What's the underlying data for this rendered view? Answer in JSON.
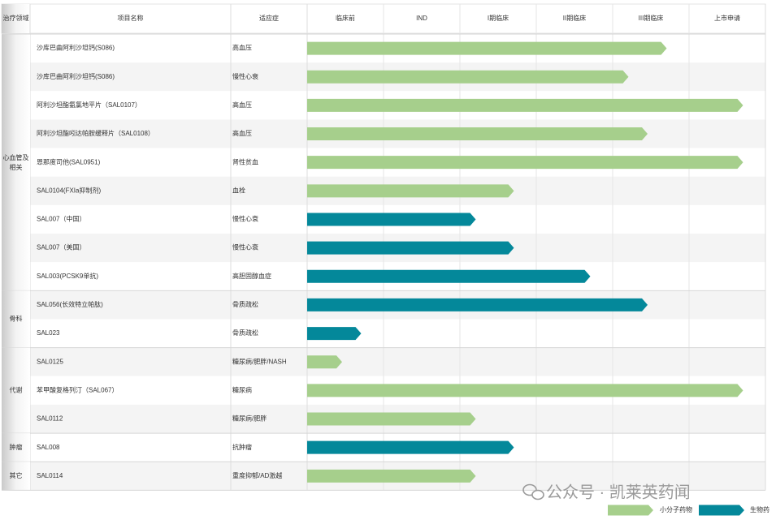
{
  "chart_data": {
    "type": "bar",
    "columns": {
      "area": "治疗领域",
      "name": "项目名称",
      "indication": "适应症"
    },
    "stages": [
      "临床前",
      "IND",
      "I期临床",
      "II期临床",
      "III期临床",
      "上市申请"
    ],
    "groups": [
      {
        "label": "心血管及相关",
        "rows": 9
      },
      {
        "label": "骨科",
        "rows": 2
      },
      {
        "label": "代谢",
        "rows": 3
      },
      {
        "label": "肿瘤",
        "rows": 1
      },
      {
        "label": "其它",
        "rows": 1
      }
    ],
    "rows": [
      {
        "name": "沙库巴曲阿利沙坦钙(S086)",
        "indication": "高血压",
        "type": "small",
        "progress": 4.75
      },
      {
        "name": "沙库巴曲阿利沙坦钙(S086)",
        "indication": "慢性心衰",
        "type": "small",
        "progress": 4.25
      },
      {
        "name": "阿利沙坦酯氨氯地平片（SAL0107）",
        "indication": "高血压",
        "type": "small",
        "progress": 5.75
      },
      {
        "name": "阿利沙坦酯吲达帕胺缓释片（SAL0108）",
        "indication": "高血压",
        "type": "small",
        "progress": 4.5
      },
      {
        "name": "恩那度司他(SAL0951)",
        "indication": "肾性贫血",
        "type": "small",
        "progress": 5.75
      },
      {
        "name": "SAL0104(FXIa抑制剂)",
        "indication": "血栓",
        "type": "small",
        "progress": 2.75
      },
      {
        "name": "SAL007（中国）",
        "indication": "慢性心衰",
        "type": "bio",
        "progress": 2.25
      },
      {
        "name": "SAL007（美国）",
        "indication": "慢性心衰",
        "type": "bio",
        "progress": 2.75
      },
      {
        "name": "SAL003(PCSK9单抗)",
        "indication": "高胆固醇血症",
        "type": "bio",
        "progress": 3.75
      },
      {
        "name": "SAL056(长效特立帕肽)",
        "indication": "骨质疏松",
        "type": "bio",
        "progress": 4.5
      },
      {
        "name": "SAL023",
        "indication": "骨质疏松",
        "type": "bio",
        "progress": 0.75
      },
      {
        "name": "SAL0125",
        "indication": "糖尿病/肥胖/NASH",
        "type": "small",
        "progress": 0.5
      },
      {
        "name": "苯甲酸复格列汀（SAL067）",
        "indication": "糖尿病",
        "type": "small",
        "progress": 5.75
      },
      {
        "name": "SAL0112",
        "indication": "糖尿病/肥胖",
        "type": "small",
        "progress": 2.25
      },
      {
        "name": "SAL008",
        "indication": "抗肿瘤",
        "type": "bio",
        "progress": 2.75
      },
      {
        "name": "SAL0114",
        "indication": "重度抑郁/AD激越",
        "type": "small",
        "progress": 2.25
      }
    ],
    "legend": [
      {
        "key": "small",
        "label": "小分子药物",
        "color": "#a6cf8c"
      },
      {
        "key": "bio",
        "label": "生物药",
        "color": "#04889a"
      }
    ],
    "watermark": "公众号 · 凯莱英药闻"
  }
}
